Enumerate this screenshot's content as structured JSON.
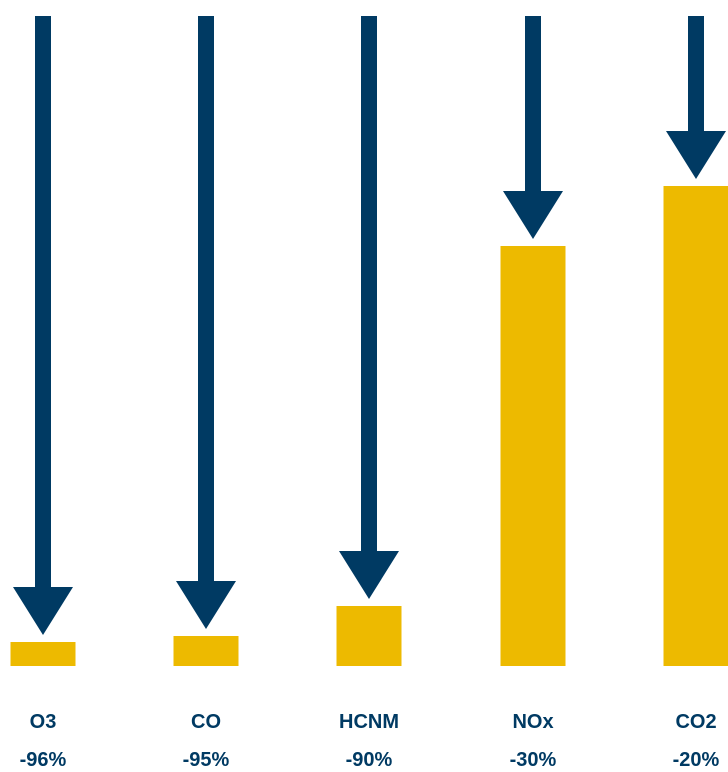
{
  "chart_data": {
    "type": "bar",
    "categories": [
      "O3",
      "CO",
      "HCNM",
      "NOx",
      "CO2"
    ],
    "values": [
      -96,
      -95,
      -90,
      -30,
      -20
    ],
    "value_labels": [
      "-96%",
      "-95%",
      "-90%",
      "-30%",
      "-20%"
    ],
    "unit": "%",
    "ylim": [
      -100,
      0
    ],
    "title": "",
    "xlabel": "",
    "ylabel": "",
    "grid": false,
    "legend": "none",
    "colors": {
      "bar": "#EDBA00",
      "arrow": "#003A63",
      "label": "#003A63"
    }
  }
}
